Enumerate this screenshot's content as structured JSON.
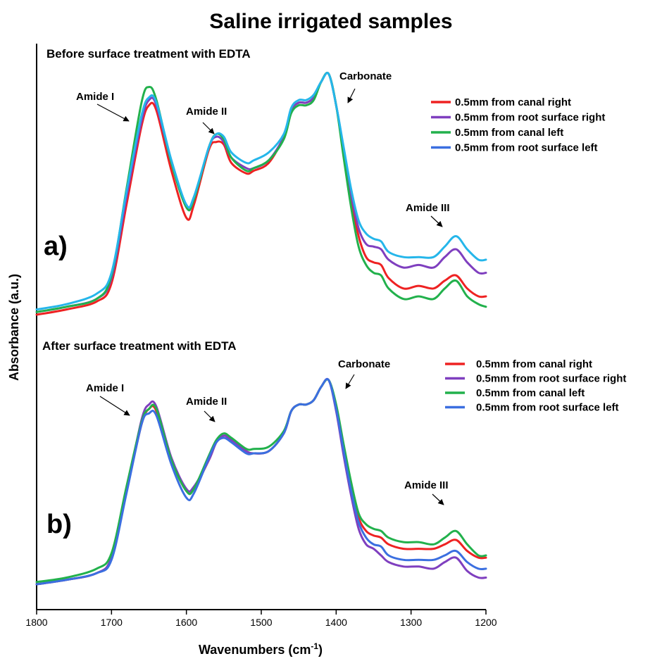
{
  "title": "Saline irrigated samples",
  "ylabel": "Absorbance (a.u.)",
  "xlabel_main": "Wavenumbers (cm",
  "xlabel_sup": "-1",
  "xlabel_close": ")",
  "colors": {
    "red": "#ee2222",
    "purple": "#7f3fbf",
    "green": "#22b14c",
    "blue": "#3b6fe0",
    "cyan": "#25b6ea"
  },
  "chart_data": [
    {
      "type": "line",
      "panel_label": "a)",
      "subtitle": "Before surface treatment with EDTA",
      "x_axis": {
        "label": "Wavenumbers (cm-1)",
        "range": [
          1800,
          1200
        ],
        "reversed": true,
        "ticks": [
          1800,
          1700,
          1600,
          1500,
          1400,
          1300,
          1200
        ]
      },
      "y_axis": {
        "label": "Absorbance (a.u.)",
        "ticks": "none",
        "units": "a.u."
      },
      "x": [
        1800,
        1760,
        1720,
        1700,
        1680,
        1660,
        1650,
        1640,
        1620,
        1600,
        1590,
        1570,
        1560,
        1550,
        1540,
        1520,
        1510,
        1490,
        1470,
        1460,
        1450,
        1440,
        1430,
        1420,
        1410,
        1400,
        1390,
        1380,
        1370,
        1360,
        1350,
        1340,
        1330,
        1310,
        1290,
        1270,
        1255,
        1240,
        1225,
        1210,
        1200
      ],
      "series": [
        {
          "name": "0.5mm from canal right",
          "color_key": "red",
          "values": [
            0.0,
            0.02,
            0.05,
            0.12,
            0.42,
            0.72,
            0.8,
            0.78,
            0.55,
            0.37,
            0.42,
            0.63,
            0.66,
            0.65,
            0.58,
            0.54,
            0.55,
            0.58,
            0.68,
            0.78,
            0.81,
            0.81,
            0.83,
            0.89,
            0.92,
            0.8,
            0.62,
            0.44,
            0.3,
            0.22,
            0.2,
            0.19,
            0.14,
            0.1,
            0.11,
            0.1,
            0.13,
            0.15,
            0.1,
            0.07,
            0.07
          ]
        },
        {
          "name": "0.5mm from root surface right",
          "color_key": "purple",
          "values": [
            0.01,
            0.03,
            0.06,
            0.14,
            0.45,
            0.74,
            0.82,
            0.8,
            0.58,
            0.41,
            0.44,
            0.64,
            0.68,
            0.66,
            0.6,
            0.56,
            0.56,
            0.59,
            0.68,
            0.78,
            0.81,
            0.81,
            0.83,
            0.89,
            0.92,
            0.8,
            0.63,
            0.46,
            0.33,
            0.27,
            0.26,
            0.25,
            0.21,
            0.18,
            0.19,
            0.18,
            0.22,
            0.25,
            0.2,
            0.16,
            0.16
          ]
        },
        {
          "name": "0.5mm from canal left",
          "color_key": "green",
          "values": [
            0.01,
            0.03,
            0.06,
            0.15,
            0.48,
            0.81,
            0.87,
            0.82,
            0.58,
            0.41,
            0.44,
            0.64,
            0.69,
            0.67,
            0.6,
            0.55,
            0.56,
            0.59,
            0.67,
            0.77,
            0.8,
            0.8,
            0.82,
            0.89,
            0.92,
            0.8,
            0.6,
            0.41,
            0.26,
            0.19,
            0.16,
            0.15,
            0.1,
            0.06,
            0.07,
            0.06,
            0.1,
            0.13,
            0.07,
            0.04,
            0.03
          ]
        },
        {
          "name": "0.5mm from root surface left",
          "color_key": "cyan",
          "values": [
            0.02,
            0.04,
            0.08,
            0.16,
            0.47,
            0.76,
            0.83,
            0.81,
            0.59,
            0.42,
            0.45,
            0.64,
            0.69,
            0.68,
            0.62,
            0.58,
            0.59,
            0.62,
            0.69,
            0.79,
            0.82,
            0.82,
            0.84,
            0.89,
            0.92,
            0.8,
            0.64,
            0.48,
            0.36,
            0.31,
            0.29,
            0.28,
            0.24,
            0.22,
            0.22,
            0.22,
            0.26,
            0.3,
            0.25,
            0.21,
            0.21
          ]
        }
      ],
      "annotations": [
        "Amide I",
        "Amide II",
        "Carbonate",
        "Amide III"
      ],
      "legend": "top-right"
    },
    {
      "type": "line",
      "panel_label": "b)",
      "subtitle": "After surface treatment with EDTA",
      "x_axis": {
        "label": "Wavenumbers (cm-1)",
        "range": [
          1800,
          1200
        ],
        "reversed": true,
        "ticks": [
          1800,
          1700,
          1600,
          1500,
          1400,
          1300,
          1200
        ]
      },
      "y_axis": {
        "label": "Absorbance (a.u.)",
        "ticks": "none",
        "units": "a.u."
      },
      "x": [
        1800,
        1760,
        1720,
        1700,
        1680,
        1660,
        1650,
        1640,
        1620,
        1600,
        1590,
        1570,
        1560,
        1550,
        1540,
        1520,
        1510,
        1490,
        1470,
        1460,
        1450,
        1440,
        1430,
        1420,
        1410,
        1400,
        1390,
        1380,
        1370,
        1360,
        1350,
        1340,
        1330,
        1310,
        1290,
        1270,
        1255,
        1240,
        1225,
        1210,
        1200
      ],
      "series": [
        {
          "name": "0.5mm from canal right",
          "color_key": "red",
          "values": [
            0.0,
            0.02,
            0.05,
            0.12,
            0.42,
            0.72,
            0.79,
            0.78,
            0.56,
            0.42,
            0.43,
            0.56,
            0.64,
            0.67,
            0.65,
            0.6,
            0.59,
            0.6,
            0.68,
            0.78,
            0.81,
            0.81,
            0.83,
            0.89,
            0.92,
            0.8,
            0.62,
            0.44,
            0.3,
            0.24,
            0.22,
            0.21,
            0.18,
            0.16,
            0.16,
            0.16,
            0.18,
            0.2,
            0.15,
            0.12,
            0.12
          ]
        },
        {
          "name": "0.5mm from root surface right",
          "color_key": "purple",
          "values": [
            0.0,
            0.02,
            0.05,
            0.12,
            0.42,
            0.74,
            0.81,
            0.8,
            0.57,
            0.43,
            0.44,
            0.56,
            0.64,
            0.67,
            0.65,
            0.6,
            0.59,
            0.6,
            0.68,
            0.78,
            0.81,
            0.81,
            0.83,
            0.89,
            0.92,
            0.78,
            0.58,
            0.4,
            0.25,
            0.18,
            0.16,
            0.13,
            0.1,
            0.08,
            0.08,
            0.07,
            0.1,
            0.12,
            0.06,
            0.03,
            0.03
          ]
        },
        {
          "name": "0.5mm from canal left",
          "color_key": "green",
          "values": [
            0.01,
            0.03,
            0.07,
            0.14,
            0.44,
            0.73,
            0.79,
            0.79,
            0.56,
            0.42,
            0.43,
            0.58,
            0.65,
            0.68,
            0.66,
            0.61,
            0.61,
            0.62,
            0.69,
            0.78,
            0.81,
            0.81,
            0.83,
            0.89,
            0.92,
            0.81,
            0.63,
            0.46,
            0.32,
            0.27,
            0.25,
            0.24,
            0.21,
            0.19,
            0.19,
            0.18,
            0.21,
            0.24,
            0.18,
            0.13,
            0.13
          ]
        },
        {
          "name": "0.5mm from root surface left",
          "color_key": "blue",
          "values": [
            0.0,
            0.02,
            0.05,
            0.11,
            0.41,
            0.72,
            0.77,
            0.76,
            0.54,
            0.39,
            0.41,
            0.57,
            0.64,
            0.66,
            0.64,
            0.59,
            0.59,
            0.6,
            0.68,
            0.78,
            0.81,
            0.81,
            0.83,
            0.89,
            0.92,
            0.79,
            0.6,
            0.42,
            0.28,
            0.21,
            0.18,
            0.17,
            0.13,
            0.11,
            0.11,
            0.11,
            0.13,
            0.15,
            0.1,
            0.07,
            0.07
          ]
        }
      ],
      "annotations": [
        "Amide I",
        "Amide II",
        "Carbonate",
        "Amide III"
      ],
      "legend": "top-right"
    }
  ],
  "tick_labels": [
    "1800",
    "1700",
    "1600",
    "1500",
    "1400",
    "1300",
    "1200"
  ]
}
